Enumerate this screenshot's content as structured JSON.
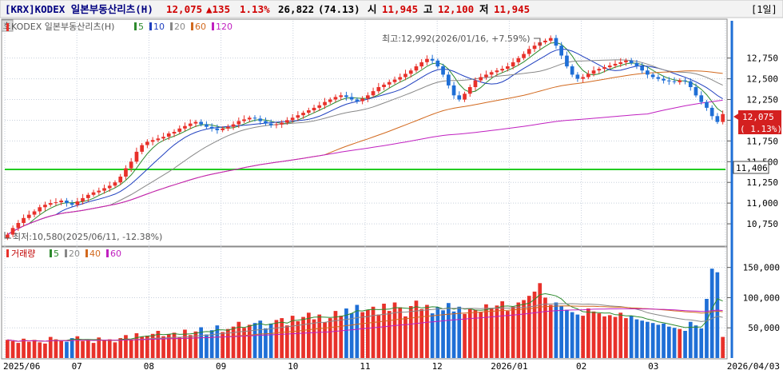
{
  "header": {
    "ticker": "[KRX]KODEX 일본부동산리츠(H)",
    "price": "12,075",
    "change": "▲135",
    "change_pct": "1.13%",
    "volume": "26,822",
    "volume_pct": "(74.13)",
    "open_label": "시",
    "open": "11,945",
    "high_label": "고",
    "high": "12,100",
    "low_label": "저",
    "low": "11,945",
    "period": "[1일]"
  },
  "side_tab": "호",
  "price_panel": {
    "legend_title": "KODEX 일본부동산리츠(H)",
    "ma": [
      {
        "label": "5",
        "color": "#2d8a2d"
      },
      {
        "label": "10",
        "color": "#1f3fbf"
      },
      {
        "label": "20",
        "color": "#888888"
      },
      {
        "label": "60",
        "color": "#d2691e"
      },
      {
        "label": "120",
        "color": "#c020c0"
      }
    ],
    "high_annotation": "최고:12,992(2026/01/16, +7.59%)",
    "low_annotation": "최저:10,580(2025/06/11, -12.38%)",
    "current_tag": "12,075",
    "current_pct_tag": "( 1.13%)",
    "level_tag": "11,406"
  },
  "volume_panel": {
    "legend_title": "거래량",
    "ma": [
      {
        "label": "5",
        "color": "#2d8a2d"
      },
      {
        "label": "20",
        "color": "#888888"
      },
      {
        "label": "40",
        "color": "#d2691e"
      },
      {
        "label": "60",
        "color": "#c020c0"
      }
    ]
  },
  "colors": {
    "up": "#e8312a",
    "down": "#1f6fd6",
    "ma5": "#2d8a2d",
    "ma10": "#1f3fbf",
    "ma20": "#888888",
    "ma60": "#d2691e",
    "ma120": "#c020c0",
    "level_line": "#22cc22",
    "grid": "#c8d0dc"
  },
  "chart_data": {
    "type": "candlestick",
    "x_labels": [
      "2025/06",
      "07",
      "08",
      "09",
      "10",
      "11",
      "12",
      "2026/01",
      "02",
      "03",
      "2026/04/03"
    ],
    "price_axis": {
      "ylim": [
        10500,
        13200
      ],
      "ticks": [
        10750,
        11000,
        11250,
        11500,
        11750,
        12000,
        12250,
        12500,
        12750
      ],
      "tick_labels": [
        "10,750",
        "11,000",
        "11,250",
        "11,500",
        "11,750",
        "",
        "12,250",
        "12,500",
        "12,750"
      ]
    },
    "volume_axis": {
      "ylim": [
        0,
        180000
      ],
      "ticks": [
        50000,
        100000,
        150000
      ],
      "tick_labels": [
        "50,000",
        "100,000",
        "150,000"
      ]
    },
    "horizontal_level": 11406,
    "high": {
      "value": 12992,
      "date": "2026/01/16",
      "pct": "+7.59%"
    },
    "low": {
      "value": 10580,
      "date": "2025/06/11",
      "pct": "-12.38%"
    },
    "last_close": 12075,
    "close_series": [
      10620,
      10700,
      10760,
      10820,
      10860,
      10900,
      10950,
      10980,
      11000,
      11010,
      11030,
      11000,
      10980,
      11020,
      11060,
      11100,
      11130,
      11150,
      11180,
      11210,
      11250,
      11320,
      11420,
      11500,
      11620,
      11700,
      11740,
      11760,
      11780,
      11800,
      11840,
      11860,
      11900,
      11930,
      11960,
      11980,
      11950,
      11920,
      11900,
      11880,
      11900,
      11920,
      11950,
      11990,
      12010,
      12030,
      12020,
      11990,
      11960,
      11940,
      11950,
      11970,
      12000,
      12030,
      12060,
      12090,
      12120,
      12150,
      12180,
      12220,
      12250,
      12280,
      12300,
      12280,
      12250,
      12230,
      12260,
      12300,
      12350,
      12400,
      12430,
      12460,
      12490,
      12520,
      12560,
      12600,
      12650,
      12700,
      12740,
      12720,
      12650,
      12550,
      12420,
      12300,
      12250,
      12320,
      12400,
      12480,
      12520,
      12550,
      12580,
      12600,
      12620,
      12650,
      12700,
      12750,
      12800,
      12860,
      12900,
      12940,
      12960,
      12992,
      12900,
      12780,
      12650,
      12550,
      12500,
      12520,
      12560,
      12600,
      12620,
      12640,
      12660,
      12680,
      12700,
      12720,
      12690,
      12650,
      12600,
      12550,
      12520,
      12500,
      12480,
      12470,
      12460,
      12480,
      12470,
      12400,
      12300,
      12220,
      12150,
      12050,
      11980,
      12075
    ],
    "volume_series": [
      30000,
      28000,
      25000,
      32000,
      27000,
      30000,
      26000,
      24000,
      35000,
      31000,
      29000,
      27000,
      33000,
      36000,
      28000,
      30000,
      25000,
      34000,
      29000,
      31000,
      26000,
      33000,
      38000,
      30000,
      41000,
      35000,
      37000,
      40000,
      45000,
      36000,
      39000,
      42000,
      34000,
      47000,
      38000,
      44000,
      51000,
      39000,
      46000,
      54000,
      43000,
      48000,
      52000,
      60000,
      50000,
      55000,
      58000,
      62000,
      49000,
      57000,
      63000,
      66000,
      54000,
      70000,
      61000,
      68000,
      75000,
      64000,
      72000,
      59000,
      66000,
      78000,
      70000,
      82000,
      74000,
      88000,
      76000,
      80000,
      85000,
      72000,
      90000,
      78000,
      92000,
      84000,
      69000,
      86000,
      95000,
      81000,
      88000,
      74000,
      84000,
      79000,
      91000,
      77000,
      85000,
      73000,
      82000,
      80000,
      76000,
      89000,
      83000,
      87000,
      94000,
      78000,
      85000,
      92000,
      96000,
      103000,
      110000,
      124000,
      100000,
      88000,
      92000,
      86000,
      80000,
      76000,
      72000,
      70000,
      82000,
      77000,
      74000,
      69000,
      71000,
      68000,
      75000,
      66000,
      70000,
      64000,
      62000,
      60000,
      58000,
      55000,
      57000,
      52000,
      50000,
      48000,
      45000,
      60000,
      54000,
      49000,
      98000,
      148000,
      142000,
      35000
    ]
  }
}
